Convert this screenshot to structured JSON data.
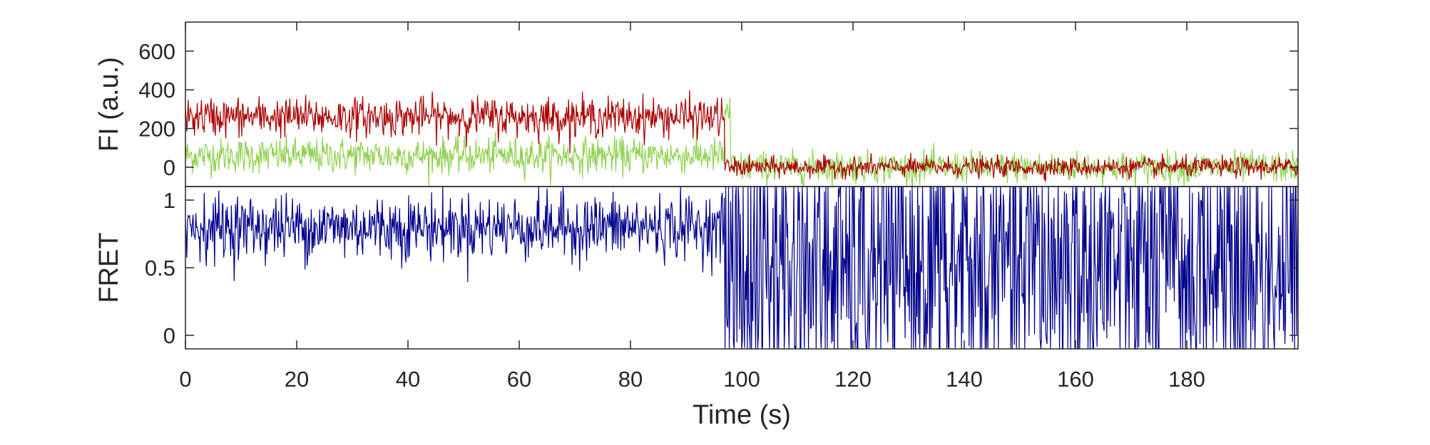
{
  "chart_data": {
    "type": "line",
    "xlabel": "Time (s)",
    "xlim": [
      0,
      200
    ],
    "xticks": [
      0,
      20,
      40,
      60,
      80,
      100,
      120,
      140,
      160,
      180
    ],
    "colors": {
      "donor": "#8fd14f",
      "acceptor": "#aa0000",
      "fret": "#00008b",
      "axes": "#262626"
    },
    "panels": [
      {
        "id": "fluorescence",
        "ylabel": "FI (a.u.)",
        "ylim": [
          -100,
          750
        ],
        "yticks": [
          0,
          200,
          400,
          600
        ],
        "series": [
          {
            "key": "donor",
            "color": "#8fd14f",
            "segments": [
              {
                "t_start": 0,
                "t_end": 97,
                "mean": 60,
                "noise_sd": 45
              },
              {
                "t_start": 97,
                "t_end": 98,
                "mean": 300,
                "noise_sd": 60
              },
              {
                "t_start": 98,
                "t_end": 200,
                "mean": 0,
                "noise_sd": 40
              }
            ]
          },
          {
            "key": "acceptor",
            "color": "#aa0000",
            "segments": [
              {
                "t_start": 0,
                "t_end": 97,
                "mean": 260,
                "noise_sd": 50
              },
              {
                "t_start": 97,
                "t_end": 200,
                "mean": 0,
                "noise_sd": 25
              }
            ]
          }
        ]
      },
      {
        "id": "fret",
        "ylabel": "FRET",
        "ylim": [
          -0.1,
          1.1
        ],
        "yticks": [
          0,
          0.5,
          1
        ],
        "series": [
          {
            "key": "fret",
            "color": "#00008b",
            "segments": [
              {
                "t_start": 0,
                "t_end": 97,
                "mean": 0.8,
                "noise_sd": 0.12
              },
              {
                "t_start": 97,
                "t_end": 200,
                "mean": 0.5,
                "noise_sd": 0.6
              }
            ]
          }
        ]
      }
    ]
  }
}
